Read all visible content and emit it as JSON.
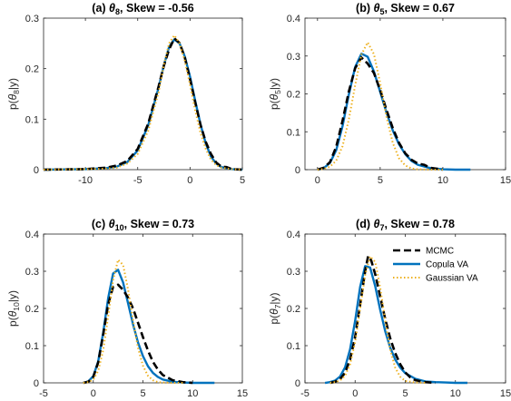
{
  "chart_data": [
    {
      "type": "line",
      "title": "(a) θ8, Skew = -0.56",
      "title_parts": {
        "prefix": "(a) ",
        "sym": "θ",
        "sub": "8",
        "suffix": ", Skew = -0.56"
      },
      "ylabel": "p(θ8|y)",
      "ylabel_parts": {
        "prefix": "p(",
        "sym": "θ",
        "sub": "8",
        "suffix": "|y)"
      },
      "xlim": [
        -14,
        5
      ],
      "ylim": [
        0,
        0.3
      ],
      "xticks": [
        -10,
        -5,
        0,
        5
      ],
      "yticks": [
        0,
        0.1,
        0.2,
        0.3
      ],
      "xtick_labels": [
        "-10",
        "-5",
        "0",
        "5"
      ],
      "ytick_labels": [
        "0",
        "0.1",
        "0.2",
        "0.3"
      ],
      "series": [
        {
          "name": "MCMC",
          "x": [
            -14,
            -10,
            -8,
            -7,
            -6,
            -5,
            -4,
            -3,
            -2.5,
            -2,
            -1.5,
            -1,
            -0.5,
            0,
            0.5,
            1,
            1.5,
            2,
            2.5,
            3,
            3.5,
            4,
            5
          ],
          "y": [
            0,
            0.001,
            0.004,
            0.008,
            0.017,
            0.041,
            0.091,
            0.165,
            0.206,
            0.238,
            0.26,
            0.251,
            0.222,
            0.179,
            0.133,
            0.089,
            0.055,
            0.031,
            0.014,
            0.006,
            0.005,
            0.001,
            0
          ]
        },
        {
          "name": "Copula VA",
          "x": [
            -14,
            -10,
            -8,
            -7,
            -6,
            -5,
            -4,
            -3,
            -2.5,
            -2,
            -1.5,
            -1,
            -0.5,
            0,
            0.5,
            1,
            1.5,
            2,
            2.5,
            3,
            4,
            5
          ],
          "y": [
            0,
            0.001,
            0.003,
            0.006,
            0.015,
            0.038,
            0.088,
            0.163,
            0.207,
            0.243,
            0.258,
            0.25,
            0.224,
            0.184,
            0.136,
            0.09,
            0.052,
            0.026,
            0.012,
            0.005,
            0.001,
            0
          ]
        },
        {
          "name": "Gaussian VA",
          "x": [
            -14,
            -10,
            -8,
            -7,
            -6,
            -5,
            -4,
            -3,
            -2.5,
            -2,
            -1.5,
            -1,
            -0.5,
            0,
            0.5,
            1,
            1.5,
            2,
            2.5,
            3,
            4,
            5
          ],
          "y": [
            0,
            0.001,
            0.002,
            0.004,
            0.012,
            0.031,
            0.077,
            0.154,
            0.208,
            0.25,
            0.266,
            0.25,
            0.216,
            0.168,
            0.117,
            0.073,
            0.041,
            0.02,
            0.009,
            0.004,
            0.001,
            0
          ]
        }
      ]
    },
    {
      "type": "line",
      "title": "(b) θ5, Skew = 0.67",
      "title_parts": {
        "prefix": "(b) ",
        "sym": "θ",
        "sub": "5",
        "suffix": ", Skew = 0.67"
      },
      "ylabel": "p(θ5|y)",
      "ylabel_parts": {
        "prefix": "p(",
        "sym": "θ",
        "sub": "5",
        "suffix": "|y)"
      },
      "xlim": [
        -1,
        15
      ],
      "ylim": [
        0,
        0.4
      ],
      "xticks": [
        0,
        5,
        10,
        15
      ],
      "yticks": [
        0,
        0.1,
        0.2,
        0.3,
        0.4
      ],
      "xtick_labels": [
        "0",
        "5",
        "10",
        "15"
      ],
      "ytick_labels": [
        "0",
        "0.1",
        "0.2",
        "0.3",
        "0.4"
      ],
      "series": [
        {
          "name": "MCMC",
          "x": [
            0,
            0.5,
            1,
            1.5,
            2,
            2.5,
            3,
            3.5,
            4,
            4.5,
            5,
            5.5,
            6,
            6.5,
            7,
            7.5,
            8,
            8.5,
            9,
            10
          ],
          "y": [
            0,
            0.005,
            0.02,
            0.061,
            0.129,
            0.206,
            0.268,
            0.296,
            0.28,
            0.255,
            0.21,
            0.158,
            0.11,
            0.071,
            0.043,
            0.026,
            0.016,
            0.013,
            0.005,
            0
          ]
        },
        {
          "name": "Copula VA",
          "x": [
            0,
            0.5,
            1,
            1.5,
            2,
            2.5,
            3,
            3.5,
            4,
            4.5,
            5,
            5.5,
            6,
            6.5,
            7,
            7.5,
            8,
            9,
            10,
            11,
            12.2
          ],
          "y": [
            0,
            0.004,
            0.018,
            0.052,
            0.115,
            0.198,
            0.271,
            0.306,
            0.298,
            0.259,
            0.205,
            0.151,
            0.104,
            0.067,
            0.041,
            0.023,
            0.013,
            0.004,
            0.001,
            0,
            0
          ]
        },
        {
          "name": "Gaussian VA",
          "x": [
            0,
            0.5,
            1,
            1.5,
            2,
            2.5,
            3,
            3.5,
            4,
            4.5,
            5,
            5.5,
            6,
            6.5,
            7,
            7.5,
            8,
            9,
            10
          ],
          "y": [
            0,
            0.002,
            0.008,
            0.024,
            0.062,
            0.132,
            0.223,
            0.304,
            0.336,
            0.305,
            0.228,
            0.14,
            0.071,
            0.03,
            0.011,
            0.003,
            0.001,
            0,
            0
          ]
        }
      ]
    },
    {
      "type": "line",
      "title": "(c) θ10, Skew = 0.73",
      "title_parts": {
        "prefix": "(c) ",
        "sym": "θ",
        "sub": "10",
        "suffix": ", Skew = 0.73"
      },
      "ylabel": "p(θ10|y)",
      "ylabel_parts": {
        "prefix": "p(",
        "sym": "θ",
        "sub": "10",
        "suffix": "|y)"
      },
      "xlim": [
        -5,
        15
      ],
      "ylim": [
        0,
        0.4
      ],
      "xticks": [
        -5,
        0,
        5,
        10,
        15
      ],
      "yticks": [
        0,
        0.1,
        0.2,
        0.3,
        0.4
      ],
      "xtick_labels": [
        "-5",
        "0",
        "5",
        "10",
        "15"
      ],
      "ytick_labels": [
        "0",
        "0.1",
        "0.2",
        "0.3",
        "0.4"
      ],
      "series": [
        {
          "name": "MCMC",
          "x": [
            -1,
            -0.5,
            0,
            0.5,
            1,
            1.5,
            2,
            2.5,
            3,
            3.5,
            4,
            4.5,
            5,
            5.5,
            6,
            6.5,
            7,
            8,
            9,
            10
          ],
          "y": [
            0,
            0.003,
            0.016,
            0.055,
            0.13,
            0.211,
            0.258,
            0.264,
            0.25,
            0.229,
            0.2,
            0.162,
            0.123,
            0.087,
            0.057,
            0.036,
            0.021,
            0.007,
            0.002,
            0
          ]
        },
        {
          "name": "Copula VA",
          "x": [
            -1,
            -0.5,
            0,
            0.5,
            1,
            1.5,
            2,
            2.5,
            3,
            3.5,
            4,
            4.5,
            5,
            5.5,
            6,
            6.5,
            7,
            8,
            9,
            10,
            11,
            12.2
          ],
          "y": [
            0,
            0.004,
            0.018,
            0.058,
            0.135,
            0.228,
            0.294,
            0.304,
            0.27,
            0.214,
            0.157,
            0.109,
            0.072,
            0.045,
            0.027,
            0.016,
            0.009,
            0.003,
            0.001,
            0,
            0,
            0
          ]
        },
        {
          "name": "Gaussian VA",
          "x": [
            -1,
            -0.5,
            0,
            0.5,
            1,
            1.5,
            2,
            2.5,
            3,
            3.5,
            4,
            4.5,
            5,
            5.5,
            6,
            6.5,
            7,
            8,
            9
          ],
          "y": [
            0,
            0.002,
            0.009,
            0.032,
            0.088,
            0.179,
            0.276,
            0.331,
            0.317,
            0.251,
            0.167,
            0.095,
            0.046,
            0.019,
            0.007,
            0.002,
            0.001,
            0,
            0
          ]
        }
      ]
    },
    {
      "type": "line",
      "title": "(d) θ7, Skew = 0.78",
      "title_parts": {
        "prefix": "(d) ",
        "sym": "θ",
        "sub": "7",
        "suffix": ", Skew = 0.78"
      },
      "ylabel": "p(θ7|y)",
      "ylabel_parts": {
        "prefix": "p(",
        "sym": "θ",
        "sub": "7",
        "suffix": "|y)"
      },
      "xlim": [
        -5,
        15
      ],
      "ylim": [
        0,
        0.4
      ],
      "xticks": [
        -5,
        0,
        5,
        10,
        15
      ],
      "yticks": [
        0,
        0.1,
        0.2,
        0.3,
        0.4
      ],
      "xtick_labels": [
        "-5",
        "0",
        "5",
        "10",
        "15"
      ],
      "ytick_labels": [
        "0",
        "0.1",
        "0.2",
        "0.3",
        "0.4"
      ],
      "legend": {
        "position": "top-right",
        "entries": [
          "MCMC",
          "Copula VA",
          "Gaussian VA"
        ]
      },
      "series": [
        {
          "name": "MCMC",
          "x": [
            -2.5,
            -2,
            -1.5,
            -1,
            -0.5,
            0,
            0.5,
            1,
            1.3,
            1.6,
            2,
            2.5,
            3,
            3.5,
            4,
            4.5,
            5,
            5.5,
            6,
            7,
            8
          ],
          "y": [
            0,
            0.003,
            0.01,
            0.027,
            0.063,
            0.124,
            0.21,
            0.3,
            0.341,
            0.33,
            0.292,
            0.232,
            0.172,
            0.12,
            0.08,
            0.05,
            0.028,
            0.015,
            0.007,
            0.002,
            0
          ]
        },
        {
          "name": "Copula VA",
          "x": [
            -3,
            -2.5,
            -2,
            -1.5,
            -1,
            -0.5,
            0,
            0.5,
            1,
            1.5,
            2,
            2.5,
            3,
            3.5,
            4,
            4.5,
            5,
            6,
            7,
            8,
            9,
            10,
            11.2
          ],
          "y": [
            0,
            0.002,
            0.006,
            0.017,
            0.042,
            0.09,
            0.167,
            0.258,
            0.314,
            0.31,
            0.26,
            0.196,
            0.139,
            0.095,
            0.063,
            0.041,
            0.026,
            0.011,
            0.004,
            0.002,
            0.001,
            0,
            0
          ]
        },
        {
          "name": "Gaussian VA",
          "x": [
            -2.5,
            -2,
            -1.5,
            -1,
            -0.5,
            0,
            0.5,
            1,
            1.5,
            2,
            2.5,
            3,
            3.5,
            4,
            4.5,
            5,
            6,
            7
          ],
          "y": [
            0,
            0.002,
            0.006,
            0.019,
            0.05,
            0.11,
            0.2,
            0.29,
            0.34,
            0.325,
            0.256,
            0.167,
            0.09,
            0.041,
            0.016,
            0.005,
            0.001,
            0
          ]
        }
      ]
    }
  ],
  "style": {
    "colors": {
      "MCMC": "#000000",
      "Copula VA": "#0072bd",
      "Gaussian VA": "#edb120"
    },
    "dash": {
      "MCMC": "8,4",
      "Copula VA": "",
      "Gaussian VA": "1.5,2.5"
    },
    "width": {
      "MCMC": 2.6,
      "Copula VA": 2.4,
      "Gaussian VA": 2.0
    }
  }
}
